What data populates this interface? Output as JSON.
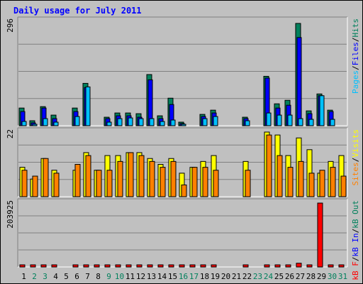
{
  "title": "Daily usage for July 2011",
  "colors": {
    "background": "#c0c0c0",
    "panel": "#c0c0c0",
    "grid": "#808080",
    "hits": "#00805c",
    "files": "#0000ff",
    "pages": "#00c0ff",
    "visits": "#ffff00",
    "sites": "#ff8000",
    "kb_out": "#e68a00",
    "kb_in": "#0000ff",
    "kb_f": "#ff0000",
    "weekend_day": "#00805c",
    "weekday": "#000000"
  },
  "chart_data": [
    {
      "type": "bar",
      "panel": "hits-files-pages",
      "y_max_label": "296",
      "ylim": [
        0,
        296
      ],
      "grid": true,
      "legend_right": [
        "Pages",
        "Files",
        "Hits"
      ],
      "legend_separator": "/",
      "categories": [
        "1",
        "2",
        "3",
        "4",
        "5",
        "6",
        "7",
        "8",
        "9",
        "10",
        "11",
        "12",
        "13",
        "14",
        "15",
        "16",
        "17",
        "18",
        "19",
        "20",
        "21",
        "22",
        "23",
        "24",
        "25",
        "26",
        "27",
        "28",
        "29",
        "30",
        "31"
      ],
      "series": [
        {
          "name": "Hits",
          "values": [
            50,
            14,
            54,
            30,
            0,
            50,
            120,
            0,
            24,
            36,
            36,
            34,
            145,
            28,
            78,
            10,
            0,
            32,
            44,
            0,
            0,
            24,
            0,
            140,
            62,
            72,
            290,
            42,
            90,
            44,
            0
          ]
        },
        {
          "name": "Files",
          "values": [
            40,
            8,
            50,
            20,
            0,
            40,
            108,
            0,
            20,
            28,
            28,
            24,
            130,
            20,
            60,
            6,
            0,
            26,
            36,
            0,
            0,
            20,
            0,
            135,
            50,
            58,
            250,
            34,
            85,
            40,
            0
          ]
        },
        {
          "name": "Pages",
          "values": [
            12,
            4,
            20,
            10,
            0,
            26,
            110,
            0,
            10,
            20,
            22,
            20,
            20,
            12,
            16,
            4,
            0,
            20,
            26,
            0,
            0,
            14,
            0,
            36,
            30,
            30,
            20,
            18,
            85,
            18,
            0
          ]
        }
      ]
    },
    {
      "type": "bar",
      "panel": "visits-sites",
      "y_max_label": "22",
      "ylim": [
        0,
        22
      ],
      "grid": true,
      "legend_right": [
        "Sites",
        "Visits"
      ],
      "legend_separator": "/",
      "categories": [
        "1",
        "2",
        "3",
        "4",
        "5",
        "6",
        "7",
        "8",
        "9",
        "10",
        "11",
        "12",
        "13",
        "14",
        "15",
        "16",
        "17",
        "18",
        "19",
        "20",
        "21",
        "22",
        "23",
        "24",
        "25",
        "26",
        "27",
        "28",
        "29",
        "30",
        "31"
      ],
      "series": [
        {
          "name": "Visits",
          "values": [
            10,
            6,
            13,
            9,
            0,
            9,
            15,
            9,
            14,
            14,
            15,
            15,
            13,
            11,
            13,
            8,
            10,
            12,
            14,
            0,
            0,
            12,
            0,
            22,
            21,
            14,
            20,
            16,
            8,
            12,
            14
          ]
        },
        {
          "name": "Sites",
          "values": [
            9,
            7,
            13,
            8,
            0,
            11,
            14,
            9,
            9,
            12,
            15,
            14,
            12,
            10,
            12,
            4,
            10,
            10,
            9,
            0,
            0,
            9,
            0,
            21,
            14,
            10,
            12,
            8,
            9,
            10,
            7
          ]
        }
      ]
    },
    {
      "type": "bar",
      "panel": "kbytes",
      "y_max_label": "203925",
      "ylim": [
        0,
        203925
      ],
      "grid": true,
      "legend_right": [
        "kB F",
        "kB In",
        "kB Out"
      ],
      "legend_separator": "/",
      "categories": [
        "1",
        "2",
        "3",
        "4",
        "5",
        "6",
        "7",
        "8",
        "9",
        "10",
        "11",
        "12",
        "13",
        "14",
        "15",
        "16",
        "17",
        "18",
        "19",
        "20",
        "21",
        "22",
        "23",
        "24",
        "25",
        "26",
        "27",
        "28",
        "29",
        "30",
        "31"
      ],
      "series": [
        {
          "name": "kB F",
          "values": [
            3000,
            3000,
            6000,
            3000,
            0,
            5500,
            3000,
            4000,
            4000,
            4500,
            4000,
            4500,
            4500,
            4000,
            3000,
            3000,
            3000,
            2500,
            5000,
            0,
            0,
            3000,
            0,
            6000,
            3000,
            3000,
            12000,
            3000,
            203925,
            3000,
            3000
          ]
        }
      ]
    }
  ],
  "x_axis_days": [
    "1",
    "2",
    "3",
    "4",
    "5",
    "6",
    "7",
    "8",
    "9",
    "10",
    "11",
    "12",
    "13",
    "14",
    "15",
    "16",
    "17",
    "18",
    "19",
    "20",
    "21",
    "22",
    "23",
    "24",
    "25",
    "26",
    "27",
    "28",
    "29",
    "30",
    "31"
  ],
  "weekend_days": [
    2,
    3,
    9,
    10,
    16,
    17,
    23,
    24,
    30,
    31
  ]
}
